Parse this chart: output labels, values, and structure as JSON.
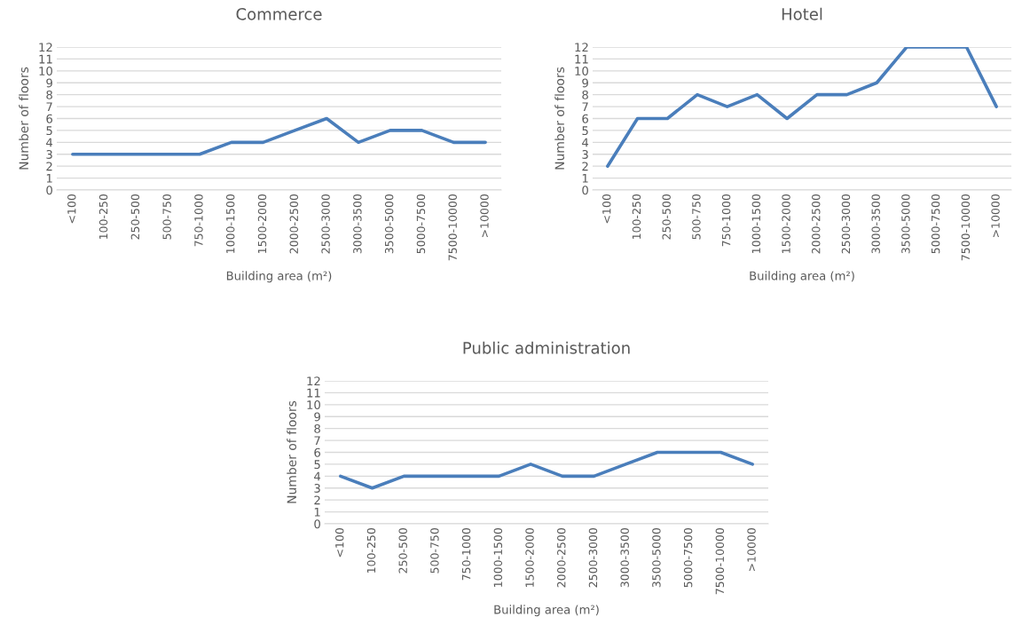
{
  "chart_data": [
    {
      "type": "line",
      "title": "Commerce",
      "xlabel": "Building area (m²)",
      "ylabel": "Number of floors",
      "categories": [
        "<100",
        "100-250",
        "250-500",
        "500-750",
        "750-1000",
        "1000-1500",
        "1500-2000",
        "2000-2500",
        "2500-3000",
        "3000-3500",
        "3500-5000",
        "5000-7500",
        "7500-10000",
        ">10000"
      ],
      "series": [
        {
          "color": "#4a7ebb",
          "values": [
            3,
            3,
            3,
            3,
            3,
            4,
            4,
            5,
            6,
            4,
            5,
            5,
            4,
            4
          ]
        }
      ],
      "ylim": [
        0,
        12
      ],
      "yticks": [
        0,
        1,
        2,
        3,
        4,
        5,
        6,
        7,
        8,
        9,
        10,
        11,
        12
      ],
      "grid": "y"
    },
    {
      "type": "line",
      "title": "Hotel",
      "xlabel": "Building area (m²)",
      "ylabel": "Number of floors",
      "categories": [
        "<100",
        "100-250",
        "250-500",
        "500-750",
        "750-1000",
        "1000-1500",
        "1500-2000",
        "2000-2500",
        "2500-3000",
        "3000-3500",
        "3500-5000",
        "5000-7500",
        "7500-10000",
        ">10000"
      ],
      "series": [
        {
          "color": "#4a7ebb",
          "values": [
            2,
            6,
            6,
            8,
            7,
            8,
            6,
            8,
            8,
            9,
            12,
            12,
            12,
            7
          ]
        }
      ],
      "ylim": [
        0,
        12
      ],
      "yticks": [
        0,
        1,
        2,
        3,
        4,
        5,
        6,
        7,
        8,
        9,
        10,
        11,
        12
      ],
      "grid": "y"
    },
    {
      "type": "line",
      "title": "Public administration",
      "xlabel": "Building area (m²)",
      "ylabel": "Number of floors",
      "categories": [
        "<100",
        "100-250",
        "250-500",
        "500-750",
        "750-1000",
        "1000-1500",
        "1500-2000",
        "2000-2500",
        "2500-3000",
        "3000-3500",
        "3500-5000",
        "5000-7500",
        "7500-10000",
        ">10000"
      ],
      "series": [
        {
          "color": "#4a7ebb",
          "values": [
            4,
            3,
            4,
            4,
            4,
            4,
            5,
            4,
            4,
            5,
            6,
            6,
            6,
            5
          ]
        }
      ],
      "ylim": [
        0,
        12
      ],
      "yticks": [
        0,
        1,
        2,
        3,
        4,
        5,
        6,
        7,
        8,
        9,
        10,
        11,
        12
      ],
      "grid": "y"
    }
  ]
}
